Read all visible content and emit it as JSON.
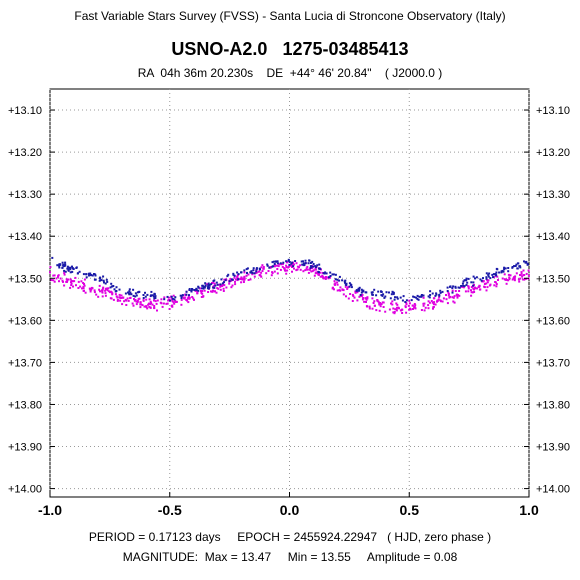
{
  "header": {
    "survey": "Fast Variable Stars Survey (FVSS) - Santa Lucia di Stroncone Observatory (Italy)",
    "star": "USNO-A2.0   1275-03485413",
    "coords": "RA  04h 36m 20.230s    DE  +44° 46' 20.84\"    ( J2000.0 )"
  },
  "footer": {
    "line1": "PERIOD = 0.17123 days     EPOCH = 2455924.22947   ( HJD, zero phase )",
    "line2": "MAGNITUDE:  Max = 13.47     Min = 13.55     Amplitude = 0.08"
  },
  "chart_data": {
    "type": "scatter",
    "title": "USNO-A2.0   1275-03485413",
    "xlabel": "",
    "ylabel": "",
    "xlim": [
      -1.0,
      1.0
    ],
    "ylim": [
      13.05,
      14.02
    ],
    "y_inverted": true,
    "grid": true,
    "x_ticks": [
      -1.0,
      -0.5,
      0.0,
      0.5,
      1.0
    ],
    "x_tick_labels": [
      "-1.0",
      "-0.5",
      "0.0",
      "0.5",
      "1.0"
    ],
    "y_ticks": [
      13.1,
      13.2,
      13.3,
      13.4,
      13.5,
      13.6,
      13.7,
      13.8,
      13.9,
      14.0
    ],
    "y_tick_labels": [
      "+13.10",
      "+13.20",
      "+13.30",
      "+13.40",
      "+13.50",
      "+13.60",
      "+13.70",
      "+13.80",
      "+13.90",
      "+14.00"
    ],
    "series": [
      {
        "color": "#1a1aa8",
        "x": [
          -1.0,
          -0.9,
          -0.8,
          -0.7,
          -0.6,
          -0.5,
          -0.4,
          -0.3,
          -0.2,
          -0.1,
          0.0,
          0.1,
          0.2,
          0.3,
          0.4,
          0.5,
          0.6,
          0.7,
          0.8,
          0.9,
          1.0
        ],
        "y": [
          13.46,
          13.48,
          13.5,
          13.53,
          13.54,
          13.55,
          13.53,
          13.51,
          13.49,
          13.47,
          13.46,
          13.47,
          13.5,
          13.53,
          13.54,
          13.55,
          13.54,
          13.52,
          13.5,
          13.48,
          13.46
        ]
      },
      {
        "color": "#e000e0",
        "x": [
          -1.0,
          -0.9,
          -0.8,
          -0.7,
          -0.6,
          -0.5,
          -0.4,
          -0.3,
          -0.2,
          -0.1,
          0.0,
          0.1,
          0.2,
          0.3,
          0.4,
          0.5,
          0.6,
          0.7,
          0.8,
          0.9,
          1.0
        ],
        "y": [
          13.49,
          13.51,
          13.53,
          13.55,
          13.56,
          13.56,
          13.54,
          13.52,
          13.5,
          13.48,
          13.47,
          13.48,
          13.52,
          13.55,
          13.57,
          13.57,
          13.56,
          13.54,
          13.52,
          13.5,
          13.49
        ]
      }
    ]
  }
}
